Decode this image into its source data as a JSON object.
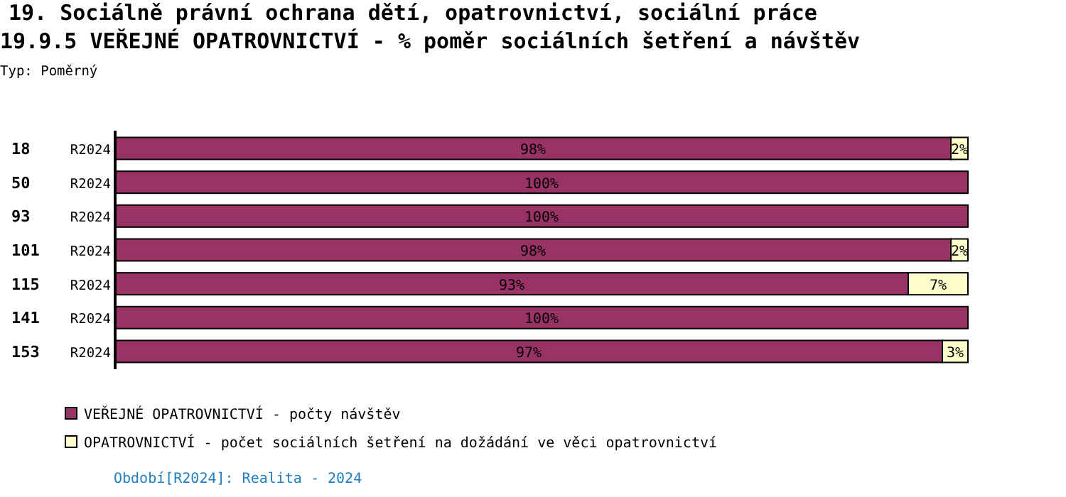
{
  "chart_data": {
    "type": "bar",
    "orientation": "horizontal",
    "stacked": true,
    "title": "19. Sociálně právní ochrana dětí, opatrovnictví, sociální práce",
    "subtitle": "19.9.5 VEŘEJNÉ OPATROVNICTVÍ - % poměr sociálních šetření a návštěv",
    "categories": [
      "18",
      "50",
      "93",
      "101",
      "115",
      "141",
      "153"
    ],
    "series": [
      {
        "name": "VEŘEJNÉ OPATROVNICTVÍ - počty návštěv",
        "color": "#993366",
        "values": [
          98,
          100,
          100,
          98,
          93,
          100,
          97
        ],
        "value_labels": [
          "98%",
          "100%",
          "100%",
          "98%",
          "93%",
          "100%",
          "97%"
        ]
      },
      {
        "name": "OPATROVNICTVÍ - počet sociálních šetření na dožádání ve věci opatrovnictví",
        "color": "#ffffcc",
        "values": [
          2,
          0,
          0,
          2,
          7,
          0,
          3
        ],
        "value_labels": [
          "2%",
          null,
          null,
          "2%",
          "7%",
          null,
          "3%"
        ]
      }
    ],
    "xlim": [
      0,
      100
    ],
    "tick_labels": "y",
    "legend": "bottom",
    "annotations": [
      "Typ: Poměrný",
      "R2024",
      "R2024",
      "R2024",
      "R2024",
      "R2024",
      "R2024",
      "R2024",
      "Období[R2024]: Realita - 2024"
    ]
  }
}
